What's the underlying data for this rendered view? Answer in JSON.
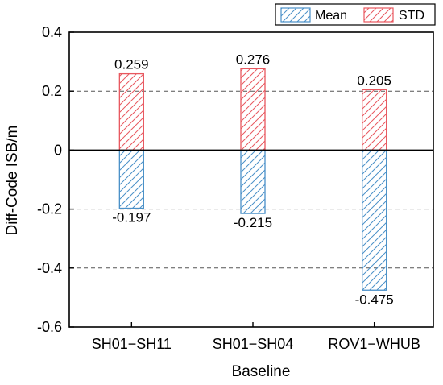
{
  "chart_data": {
    "type": "bar",
    "xlabel": "Baseline",
    "ylabel": "Diff-Code ISB/m",
    "categories": [
      "SH01−SH11",
      "SH01−SH04",
      "ROV1−WHUB"
    ],
    "series": [
      {
        "name": "Mean",
        "values": [
          -0.197,
          -0.215,
          -0.475
        ],
        "labels": [
          "-0.197",
          "-0.215",
          "-0.475"
        ],
        "color": "#4a90c8"
      },
      {
        "name": "STD",
        "values": [
          0.259,
          0.276,
          0.205
        ],
        "labels": [
          "0.259",
          "0.276",
          "0.205"
        ],
        "color": "#e8585f"
      }
    ],
    "ylim": [
      -0.6,
      0.4
    ],
    "yticks": [
      -0.6,
      -0.4,
      -0.2,
      0,
      0.2,
      0.4
    ],
    "ytick_labels": [
      "-0.6",
      "-0.4",
      "-0.2",
      "0",
      "0.2",
      "0.4"
    ],
    "bar_fill": "hatched",
    "grid": "dashed horizontal lines",
    "legend": "top-right"
  }
}
